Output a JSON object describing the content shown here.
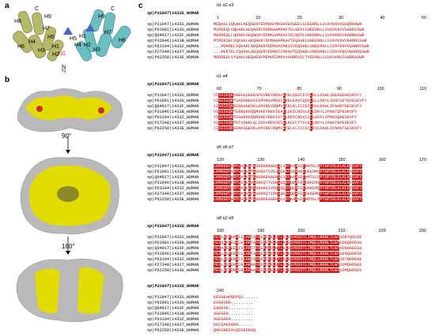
{
  "panels": {
    "a": "a",
    "b": "b",
    "c": "c"
  },
  "panel_a": {
    "labels": [
      "C",
      "H9",
      "H8",
      "H7",
      "H5",
      "H4",
      "H3",
      "H6",
      "H1",
      "H2",
      "N",
      "H1",
      "H2",
      "H3",
      "H4",
      "H5",
      "H6",
      "H7",
      "H9",
      "C"
    ]
  },
  "panel_b": {
    "rotations": [
      "90°",
      "180°"
    ]
  },
  "alignment": {
    "names": [
      "sp|P31947|1433S_HUMAN",
      "sp|P61981|1433G_HUMAN",
      "sp|Q04917|1433F_HUMAN",
      "sp|P31946|1433B_HUMAN",
      "sp|P63104|1433Z_HUMAN",
      "sp|P27348|1433T_HUMAN",
      "sp|P62258|1433E_HUMAN"
    ],
    "blocks": [
      {
        "header": "sp|P31947|1433S_HUMAN",
        "structure": "α1          α2              α3",
        "ruler": [
          "1",
          "10",
          "20",
          "30",
          "40",
          "50"
        ],
        "seqs": [
          "MERASLIQKAKLAEQAERYEDMAAFMKGAVEKGEELSCEERNLLSVAYKNVVGGQRAAWR",
          "MVDREQLVQKARLAEQAERYDDMAAAMKNVTELNEPLSNEERNLLSVAYKNVVGARRSSWR",
          "MGDREQLLQRARLAEQAERYDDMASAMKAVTELNEPLSNEDRNLLSVAYKNVVGARRASWR",
          "MTMDKSELVQKAKLAEQAERYDDMAAAMKAVTEQGHELSNEERNLLSVAYKNVVGARRSSWR",
          "...MDKNELVQKAKLAEQAERYDDMAACMKSVTEQGAELSNEERNLLSVAYKNVVGARRSSWR",
          "...MEKTELIQKAKLAEQAERYDDMATCMKAVTEQGAELSNEERNLLSVAYKNVVGGRRSAWR",
          "MDDREDLVYQAKLAEQAERYDEMVESMKKVAGMDVELTVEERNLLSVAYKNVIGARRASWR"
        ]
      },
      {
        "header": "sp|P31947|1433S_HUMAN",
        "structure": "η1                α4",
        "ruler": [
          "60",
          "70",
          "80",
          "90",
          "100",
          "110"
        ],
        "seqs": [
          "VISSIEQKSNEEGSEEKGPEVREYREKVETELQGVCDTVLGLLDSHLIKEAGDAESRVFY",
          "VISSIEQKTSADGNEKKIEMVRAYREKIEKELEAVCQDVLSLLDNYLIKNCSETQYESKVFY",
          "IISSIEQKEENKGGEDKLKMIREYRQMVETELKLICCDILDVLDKHLIPAANTGESKVFY",
          "VISSIEQKTERNEKKQQMGKEYREKIEAELQDICNDVLELLDKYLIPNATQPESKVFY",
          "VVSSIEQKTEGAEKKQQMAREYREKIETELRDICNDVLSLLEKFLIPNASQAESKVFY",
          "VISSIEQKTDTSDKKLQLIKDYREKVESELRSICTTVLELLDKYLIANATNPESKVFY",
          "IISSIEQKEENKGGEDKLKMIREYRQMVETELKLICCDILDVLDKHLIPAANTGESKVFY"
        ]
      },
      {
        "header": "sp|P31947|1433S_HUMAN",
        "structure": "α5              α6              α7",
        "ruler": [
          "120",
          "130",
          "140",
          "150",
          "160",
          "170"
        ],
        "seqs": [
          "LKMKGDYHRYLAEFATGDDRKRAAENSLVAYKAASDIAMTELPPTHPIRLGLALNFSVFY",
          "LKMKGDYYRYLAEVATGEKRATVVESSEKAYSEAHEISKEHMQPTHPIRLGLALNYSVFY",
          "LKMKGDYHRYLAEFATGNDRKEAAENSLVAYKAASDIAMTELPPTHPIRLGLALNFSVFY",
          "LKMKGDYFRYLSEVASGDNKQTTVSNSQQAYQEAFEISKKEMQPTHPIRLGLALNFSVFY",
          "LKMKGDYYRYLAEVAAGDDKKGIVDQSQQAYQEAFEISKKEMQPTHPIRLGLALNFSVFY",
          "LKMKGDYFRYLAEVACGDDRKQTIDNSQGAYQEAFDISKKEMQPTHPIRLGLALNFSVFY",
          "LKMKGDYHRYLAEFATGNDRKEAAENSLVAYKAASDIAMTELPPTHPIRLGLALNFSVFY"
        ]
      },
      {
        "header": "sp|P31947|1433S_HUMAN",
        "structure": "α8            η2        α9",
        "ruler": [
          "180",
          "190",
          "200",
          "210",
          "220",
          "230"
        ],
        "seqs": [
          "YEILNSPEKACSLAKTAFDEAIAELDTLSEESYKDSTLIMQLLRDNLTLWTSDRTQGCDE",
          "YEIQNAPEQACHLAKTAFDDAIAELDTLNEDSYKDSTLIMQLLRDNLTLWTSDQQDDDGG",
          "YEIANSPEEAISLAKTTFDEAMADLHTLSEDSYKDSTLIMQLLRDNLTLWTADNAGEEGG",
          "YEILNSPEKACSLAKTAFDEAIAELDTLSEESYKDSTLIMQLLRDNLTLWTSENQGDEGD",
          "YEILNSPEKACSLAKTAFDEAIAELDTLSEESYKDSTLIMQLLRDNLTLWTSDTQGDEAE",
          "YEILNSPDRACRLAKAAFDDAIAELDTLSEESYKDSTLIMQLLRDNLTLWTSDMQGDGEE",
          "YEILNSPDRACRLAKAAFDDAIAELDTLSEESYKDSTLIMQLLRDNLTLWTSDMQGDGEE"
        ]
      },
      {
        "header": "sp|P31947|1433S_HUMAN",
        "structure": "",
        "ruler": [
          "240"
        ],
        "seqs": [
          "EEGGEAPQEPQS......",
          "EGGEGNN.........",
          "EAGEGN..........",
          "AGEGEN..........",
          "AGEGGEN.........",
          "EKCDAEGAEN......",
          "QNEGNEEALQDVEDENQ"
        ]
      }
    ]
  }
}
